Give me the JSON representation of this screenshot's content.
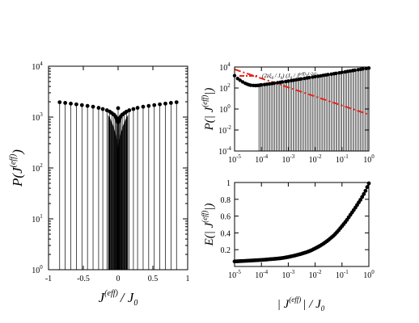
{
  "colors": {
    "stem": "#000000",
    "marker": "#000000",
    "fit": "#e8231c",
    "frame": "#000000"
  },
  "chart_data": [
    {
      "id": "left",
      "type": "scatter",
      "subtype": "stem plot with filled circle markers",
      "xlabel": {
        "main": "J",
        "sup": "(eff)",
        "tail": "/  J",
        "sub": "0"
      },
      "ylabel": {
        "main": "P(J",
        "sup": "(eff)",
        "tail": ")"
      },
      "xscale": "linear",
      "yscale": "log",
      "xlim": [
        -1,
        1
      ],
      "ylim": [
        1,
        10000
      ],
      "xticks": [
        -1,
        -0.5,
        0,
        0.5,
        1
      ],
      "xtick_labels": [
        "-1",
        "-0.5",
        "0",
        "0.5",
        "1"
      ],
      "yticks": [
        1,
        10,
        100,
        1000,
        10000
      ],
      "ytick_labels": [
        {
          "base": "10",
          "exp": "0"
        },
        {
          "base": "10",
          "exp": "1"
        },
        {
          "base": "10",
          "exp": "2"
        },
        {
          "base": "10",
          "exp": "3"
        },
        {
          "base": "10",
          "exp": "4"
        }
      ],
      "grid": false,
      "legend": "none",
      "series": [
        {
          "x": [
            -0.84,
            -0.76,
            -0.68,
            -0.6,
            -0.52,
            -0.44,
            -0.36,
            -0.28,
            -0.22,
            -0.16,
            -0.12,
            -0.09,
            -0.06,
            -0.04,
            -0.025,
            -0.015,
            -0.007,
            0,
            0.007,
            0.015,
            0.025,
            0.04,
            0.06,
            0.09,
            0.12,
            0.16,
            0.22,
            0.28,
            0.36,
            0.44,
            0.52,
            0.6,
            0.68,
            0.76,
            0.84
          ],
          "y": [
            1960,
            1900,
            1840,
            1780,
            1720,
            1660,
            1600,
            1520,
            1440,
            1360,
            1280,
            1200,
            1120,
            1040,
            960,
            880,
            800,
            1500,
            800,
            880,
            960,
            1040,
            1120,
            1200,
            1280,
            1360,
            1440,
            1520,
            1600,
            1660,
            1720,
            1780,
            1840,
            1900,
            1960
          ]
        }
      ],
      "dense_stem_region": [
        -0.14,
        0.14
      ],
      "dense_stem_top": 700
    },
    {
      "id": "top-right",
      "type": "scatter",
      "subtype": "stem plot with markers and power-law fit line",
      "ylabel": {
        "main": "P(| J",
        "sup": "(eff)",
        "tail": "|)"
      },
      "xscale": "log",
      "yscale": "log",
      "xlim": [
        1e-05,
        1
      ],
      "ylim": [
        0.0001,
        10000
      ],
      "xticks": [
        1e-05,
        0.0001,
        0.001,
        0.01,
        0.1,
        1
      ],
      "xtick_labels": [
        {
          "base": "10",
          "exp": "-5"
        },
        {
          "base": "10",
          "exp": "-4"
        },
        {
          "base": "10",
          "exp": "-3"
        },
        {
          "base": "10",
          "exp": "-2"
        },
        {
          "base": "10",
          "exp": "-1"
        },
        {
          "base": "10",
          "exp": "0"
        }
      ],
      "yticks": [
        0.0001,
        0.01,
        1,
        100,
        10000
      ],
      "ytick_labels": [
        {
          "base": "10",
          "exp": "-4"
        },
        {
          "base": "10",
          "exp": "-2"
        },
        {
          "base": "10",
          "exp": "0"
        },
        {
          "base": "10",
          "exp": "2"
        },
        {
          "base": "10",
          "exp": "4"
        }
      ],
      "grid": false,
      "legend": "top",
      "legend_text": "(2zξ₀ / J₀) (J₀ / J(eff))^(1-2zξ₀)",
      "legend_parts": {
        "a": "(2z",
        "b": "ξ",
        "c": "0",
        "d": " / J",
        "e": "0",
        "f": ")   (J",
        "g": "0",
        "h": " / J",
        "i": "(eff)",
        "j": ")",
        "k": "1-2zξ",
        "l": "0"
      },
      "series": [
        {
          "type": "line",
          "role": "fit",
          "dash": "dash-dot",
          "x": [
            1e-05,
            1
          ],
          "y": [
            6000,
            0.3
          ]
        },
        {
          "type": "scatter",
          "role": "data",
          "x": [
            1e-05,
            1.3e-05,
            1.6e-05,
            2e-05,
            2.5e-05,
            3e-05,
            3.5e-05,
            4e-05,
            5e-05,
            6e-05,
            7e-05,
            8e-05,
            9e-05,
            0.0001,
            0.00013,
            0.00016,
            0.0002,
            0.00025,
            0.0003,
            0.0004,
            0.0005,
            0.0006,
            0.0008,
            0.001,
            0.0013,
            0.0016,
            0.002,
            0.0025,
            0.003,
            0.004,
            0.005,
            0.006,
            0.008,
            0.01,
            0.013,
            0.016,
            0.02,
            0.025,
            0.03,
            0.04,
            0.05,
            0.06,
            0.08,
            0.1,
            0.13,
            0.16,
            0.2,
            0.25,
            0.3,
            0.4,
            0.5,
            0.6,
            0.8,
            1
          ],
          "y": [
            1500,
            800,
            550,
            380,
            280,
            230,
            200,
            185,
            175,
            170,
            175,
            180,
            190,
            200,
            215,
            230,
            250,
            270,
            290,
            320,
            350,
            380,
            420,
            460,
            510,
            560,
            620,
            680,
            740,
            820,
            900,
            980,
            1100,
            1200,
            1330,
            1450,
            1600,
            1750,
            1900,
            2100,
            2300,
            2500,
            2800,
            3100,
            3450,
            3800,
            4200,
            4600,
            5000,
            5600,
            6100,
            6600,
            7300,
            8000
          ]
        }
      ],
      "stem_region": [
        8e-05,
        1
      ],
      "stem_bottom": 0.0001
    },
    {
      "id": "bottom-right",
      "type": "line",
      "subtype": "line with filled circle markers",
      "xlabel": {
        "main": "| J",
        "sup": "(eff)",
        "tail": "|  /  J",
        "sub": "0"
      },
      "ylabel": {
        "main": "E(| J",
        "sup": "(eff)",
        "tail": "|)"
      },
      "xscale": "log",
      "yscale": "linear",
      "xlim": [
        1e-05,
        1
      ],
      "ylim": [
        0,
        1
      ],
      "xticks": [
        1e-05,
        0.0001,
        0.001,
        0.01,
        0.1,
        1
      ],
      "xtick_labels": [
        {
          "base": "10",
          "exp": "-5"
        },
        {
          "base": "10",
          "exp": "-4"
        },
        {
          "base": "10",
          "exp": "-3"
        },
        {
          "base": "10",
          "exp": "-2"
        },
        {
          "base": "10",
          "exp": "-1"
        },
        {
          "base": "10",
          "exp": "0"
        }
      ],
      "yticks": [
        0,
        0.2,
        0.4,
        0.6,
        0.8,
        1
      ],
      "ytick_labels": [
        "",
        "0.2",
        "0.4",
        "0.6",
        "0.8",
        "1"
      ],
      "grid": false,
      "legend": "none",
      "series": [
        {
          "x": [
            1e-05,
            2e-05,
            3e-05,
            5e-05,
            7e-05,
            0.0001,
            0.00015,
            0.0002,
            0.0003,
            0.0005,
            0.0007,
            0.001,
            0.0015,
            0.002,
            0.003,
            0.005,
            0.007,
            0.01,
            0.015,
            0.02,
            0.03,
            0.05,
            0.07,
            0.1,
            0.15,
            0.2,
            0.3,
            0.5,
            0.7,
            1
          ],
          "y": [
            0.06,
            0.065,
            0.068,
            0.072,
            0.075,
            0.078,
            0.082,
            0.086,
            0.09,
            0.097,
            0.104,
            0.113,
            0.125,
            0.135,
            0.15,
            0.172,
            0.19,
            0.215,
            0.245,
            0.27,
            0.31,
            0.37,
            0.42,
            0.48,
            0.55,
            0.61,
            0.69,
            0.8,
            0.88,
            0.99
          ]
        }
      ]
    }
  ]
}
